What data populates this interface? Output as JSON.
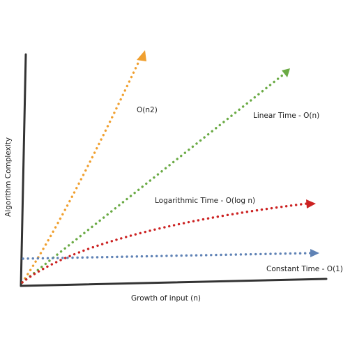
{
  "chart_data": {
    "type": "line",
    "title": "",
    "xlabel": "Growth of input (n)",
    "ylabel": "Algorithm Complexity",
    "grid": false,
    "series": [
      {
        "name": "O(n2)",
        "label": "O(n2)",
        "color": "#f0a030"
      },
      {
        "name": "Linear Time - O(n)",
        "label": "Linear Time - O(n)",
        "color": "#6aaa44"
      },
      {
        "name": "Logarithmic Time - O(log n)",
        "label": "Logarithmic Time - O(log n)",
        "color": "#cc2222"
      },
      {
        "name": "Constant Time - O(1)",
        "label": "Constant Time - O(1)",
        "color": "#5f82b5"
      }
    ]
  }
}
